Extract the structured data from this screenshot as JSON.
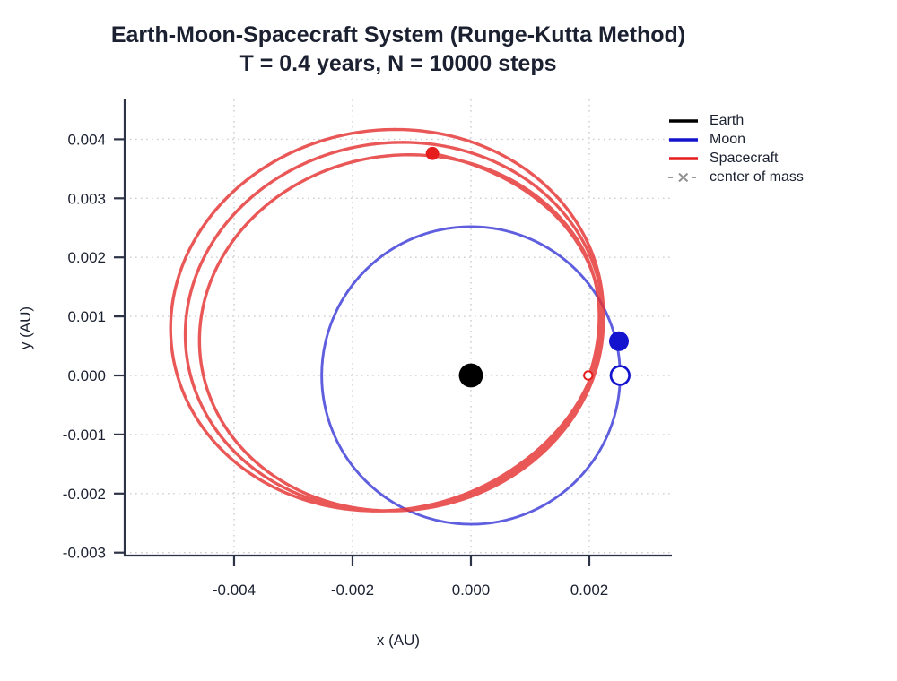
{
  "page": {
    "background": "#ffffff"
  },
  "chart_data": {
    "type": "line",
    "title": "Earth-Moon-Spacecraft System (Runge-Kutta Method)",
    "subtitle": "T = 0.4 years, N = 10000 steps",
    "xlabel": "x (AU)",
    "ylabel": "y (AU)",
    "xlim": [
      -0.005848,
      0.003394
    ],
    "ylim": [
      -0.00305,
      0.004674
    ],
    "grid": "dotted",
    "legend_position": "top-right-outside",
    "xticks": {
      "values": [
        -0.004,
        -0.002,
        0.0,
        0.002
      ],
      "labels": [
        "-0.004",
        "-0.002",
        "0.000",
        "0.002"
      ]
    },
    "yticks": {
      "values": [
        0.004,
        0.003,
        0.002,
        0.001,
        0.0,
        -0.001,
        -0.002,
        -0.003
      ],
      "labels": [
        "0.004",
        "0.003",
        "0.002",
        "0.001",
        "0.000",
        "-0.001",
        "-0.002",
        "-0.003"
      ]
    },
    "colors": {
      "earth": "#000000",
      "moon": "#1414cf",
      "moon_orbit": "#3b3bd8",
      "spacecraft": "#e51d1d",
      "spacecraft_path": "#e53232",
      "center_of_mass": "#8f8f8f",
      "grid": "#cdcdd2",
      "axis": "#2c3347",
      "text": "#1b2130"
    },
    "legend": [
      {
        "label": "Earth",
        "color": "#000000",
        "style": "solid"
      },
      {
        "label": "Moon",
        "color": "#1414cf",
        "style": "solid"
      },
      {
        "label": "Spacecraft",
        "color": "#e51d1d",
        "style": "solid"
      },
      {
        "label": "center of mass",
        "color": "#8f8f8f",
        "style": "dashed-x"
      }
    ],
    "earth": {
      "position": [
        0.0,
        0.0
      ],
      "marker": "filled-circle"
    },
    "moon": {
      "orbit_center": [
        0.0,
        0.0
      ],
      "orbit_radius": 0.00252,
      "initial_position": [
        0.00252,
        0.0
      ],
      "current_position": [
        0.0025,
        0.00058
      ],
      "initial_marker": "open-circle",
      "current_marker": "filled-circle"
    },
    "spacecraft": {
      "initial_position": [
        0.002,
        0.0
      ],
      "current_position": [
        -0.00065,
        0.00376
      ],
      "n_loops_visible": 3,
      "left_extremes_x": [
        -0.00472,
        -0.00487,
        -0.00503
      ],
      "top_extreme_y": 0.00415,
      "bottom_extreme_y": -0.0023,
      "orbit_model": {
        "a0": 0.00336,
        "growth_per_turn": 1.035,
        "axis_ratio": 0.885,
        "tilt_deg": 10,
        "right_pin": 0.00225,
        "bottom_pin": -0.00228,
        "turns": 3.24,
        "start_blend_turns": 0.12,
        "end_blend_turns": 0.35
      }
    },
    "center_of_mass": {
      "position": [
        0.0,
        0.0
      ],
      "visible": false
    }
  }
}
